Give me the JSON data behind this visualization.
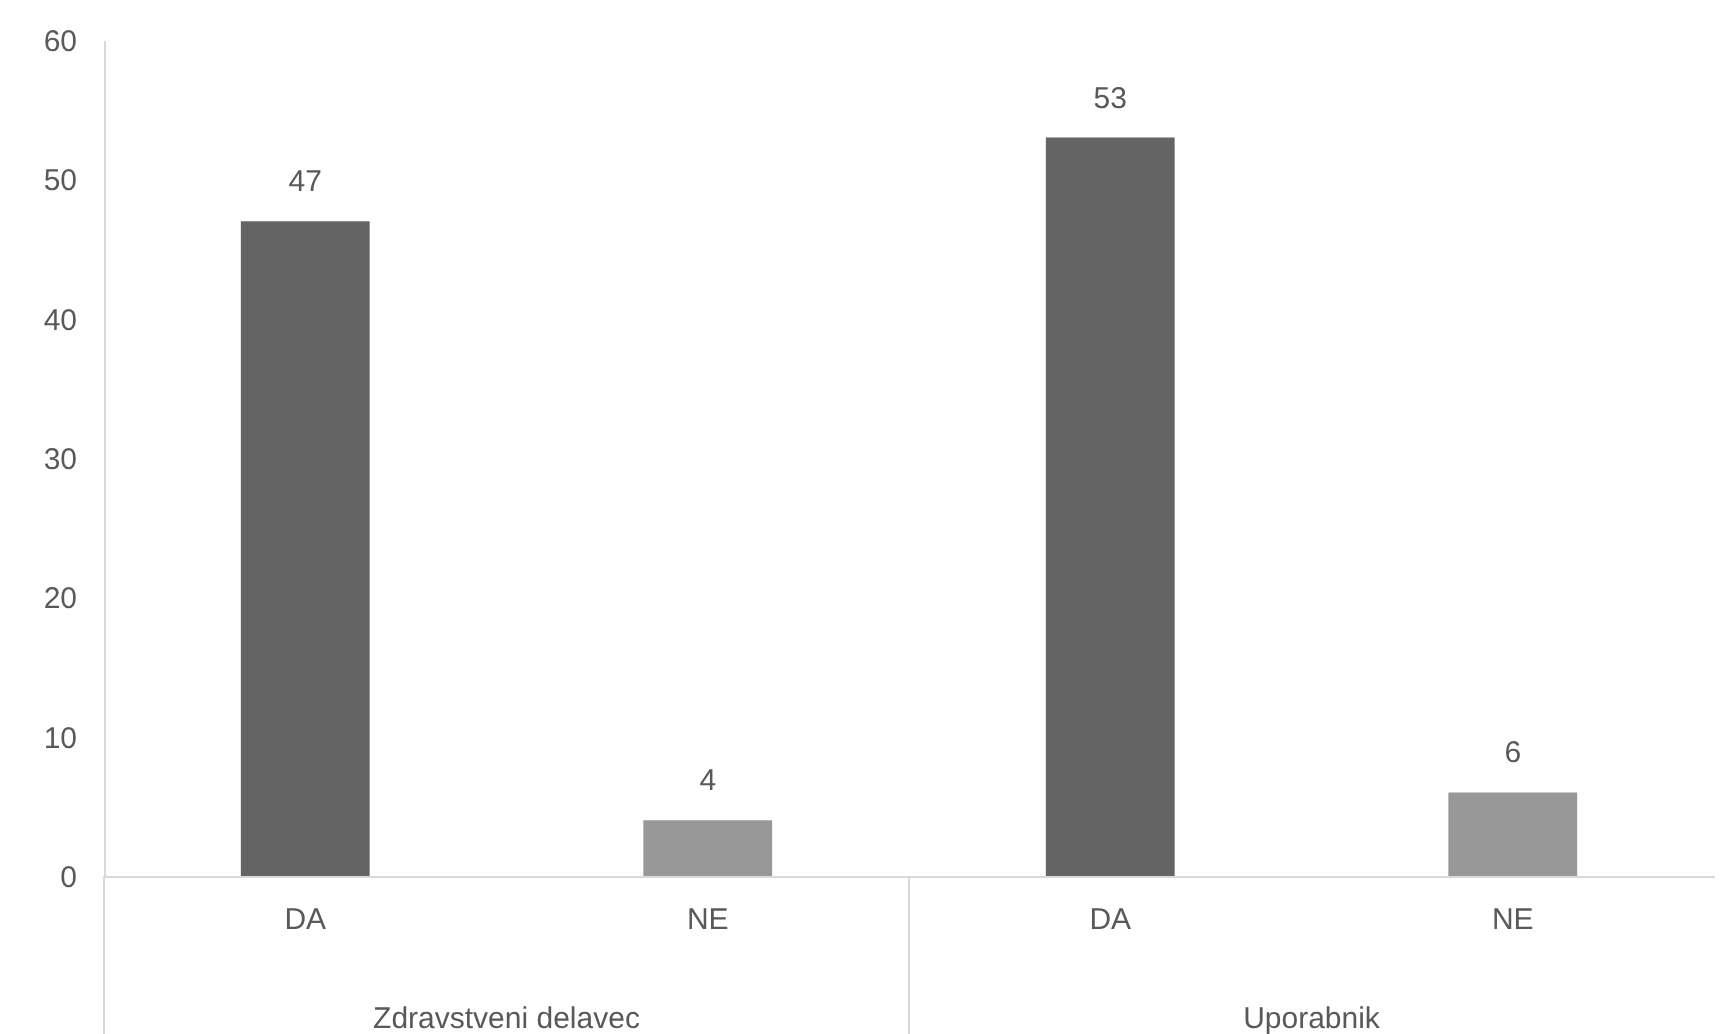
{
  "chart_data": {
    "type": "bar",
    "categories": [
      "DA",
      "NE",
      "DA",
      "NE"
    ],
    "values": [
      47,
      4,
      53,
      6
    ],
    "colors": [
      "#646464",
      "#989898",
      "#646464",
      "#989898"
    ],
    "annotations": [
      "Zdravstveni delavec",
      "Uporabnik"
    ],
    "ylim": [
      0,
      60
    ],
    "yticks": [
      0,
      10,
      20,
      30,
      40,
      50,
      60
    ],
    "data_labels": true,
    "grid": false
  }
}
